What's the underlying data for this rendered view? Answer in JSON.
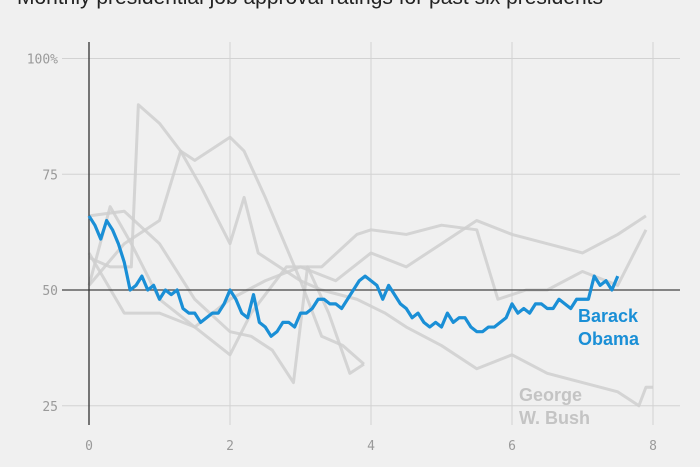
{
  "chart_data": {
    "type": "line",
    "title": "Monthly presidential job approval ratings for past six presidents",
    "xlabel": "",
    "ylabel": "",
    "xlim": [
      0,
      8
    ],
    "ylim": [
      22,
      105
    ],
    "x_ticks": [
      "0",
      "2",
      "4",
      "6",
      "8"
    ],
    "y_ticks": [
      "100%",
      "75",
      "50",
      "25"
    ],
    "grid": true,
    "reference_line": 50,
    "highlight_color": "#1a8fd6",
    "gray_color": "#cfcfcf",
    "highlight": {
      "name": "Barack Obama",
      "label_lines": [
        "Barack",
        "Obama"
      ],
      "monthly_values": [
        66,
        64,
        61,
        65,
        63,
        60,
        56,
        50,
        51,
        53,
        50,
        51,
        48,
        50,
        49,
        50,
        46,
        45,
        45,
        43,
        44,
        45,
        45,
        47,
        50,
        48,
        45,
        44,
        49,
        43,
        42,
        40,
        41,
        43,
        43,
        42,
        45,
        45,
        46,
        48,
        48,
        47,
        47,
        46,
        48,
        50,
        52,
        53,
        52,
        51,
        48,
        51,
        49,
        47,
        46,
        44,
        45,
        43,
        42,
        43,
        42,
        45,
        43,
        44,
        44,
        42,
        41,
        41,
        42,
        42,
        43,
        44,
        47,
        45,
        46,
        45,
        47,
        47,
        46,
        46,
        48,
        47,
        46,
        48,
        48,
        48,
        53,
        51,
        52,
        50,
        53
      ]
    },
    "gray_series": [
      {
        "name": "George W. Bush",
        "label_lines": [
          "George",
          "W. Bush"
        ],
        "points": [
          [
            0,
            57
          ],
          [
            0.3,
            55
          ],
          [
            0.6,
            55
          ],
          [
            0.7,
            90
          ],
          [
            1,
            86
          ],
          [
            1.3,
            80
          ],
          [
            1.6,
            72
          ],
          [
            2,
            60
          ],
          [
            2.2,
            70
          ],
          [
            2.4,
            58
          ],
          [
            3,
            52
          ],
          [
            3.3,
            50
          ],
          [
            3.8,
            48
          ],
          [
            4.2,
            45
          ],
          [
            4.5,
            42
          ],
          [
            5,
            38
          ],
          [
            5.5,
            33
          ],
          [
            6,
            36
          ],
          [
            6.5,
            32
          ],
          [
            7,
            30
          ],
          [
            7.5,
            28
          ],
          [
            7.8,
            25
          ],
          [
            7.9,
            29
          ],
          [
            8,
            29
          ]
        ]
      },
      {
        "points": [
          [
            0,
            58
          ],
          [
            0.5,
            45
          ],
          [
            1,
            45
          ],
          [
            1.5,
            42
          ],
          [
            2,
            48
          ],
          [
            2.5,
            52
          ],
          [
            3,
            55
          ],
          [
            3.5,
            52
          ],
          [
            4,
            58
          ],
          [
            4.5,
            55
          ],
          [
            5,
            60
          ],
          [
            5.5,
            65
          ],
          [
            6,
            62
          ],
          [
            6.5,
            60
          ],
          [
            7,
            58
          ],
          [
            7.5,
            62
          ],
          [
            7.9,
            66
          ]
        ]
      },
      {
        "points": [
          [
            0,
            51
          ],
          [
            0.3,
            68
          ],
          [
            0.6,
            60
          ],
          [
            1,
            48
          ],
          [
            1.5,
            42
          ],
          [
            2,
            36
          ],
          [
            2.3,
            45
          ],
          [
            2.8,
            55
          ],
          [
            3.3,
            55
          ],
          [
            3.8,
            62
          ],
          [
            4,
            63
          ],
          [
            4.5,
            62
          ],
          [
            5,
            64
          ],
          [
            5.5,
            63
          ],
          [
            5.8,
            48
          ],
          [
            6.2,
            50
          ],
          [
            6.5,
            50
          ],
          [
            7,
            54
          ],
          [
            7.5,
            51
          ],
          [
            7.9,
            63
          ]
        ]
      },
      {
        "points": [
          [
            0,
            51
          ],
          [
            0.5,
            60
          ],
          [
            1,
            65
          ],
          [
            1.3,
            80
          ],
          [
            1.5,
            78
          ],
          [
            2,
            83
          ],
          [
            2.2,
            80
          ],
          [
            2.5,
            70
          ],
          [
            3,
            52
          ],
          [
            3.3,
            40
          ],
          [
            3.6,
            38
          ],
          [
            3.9,
            34
          ]
        ]
      },
      {
        "points": [
          [
            0,
            66
          ],
          [
            0.5,
            67
          ],
          [
            1,
            60
          ],
          [
            1.5,
            48
          ],
          [
            2,
            41
          ],
          [
            2.3,
            40
          ],
          [
            2.6,
            37
          ],
          [
            2.9,
            30
          ],
          [
            3.1,
            55
          ],
          [
            3.4,
            45
          ],
          [
            3.7,
            32
          ],
          [
            3.9,
            34
          ]
        ]
      }
    ]
  }
}
